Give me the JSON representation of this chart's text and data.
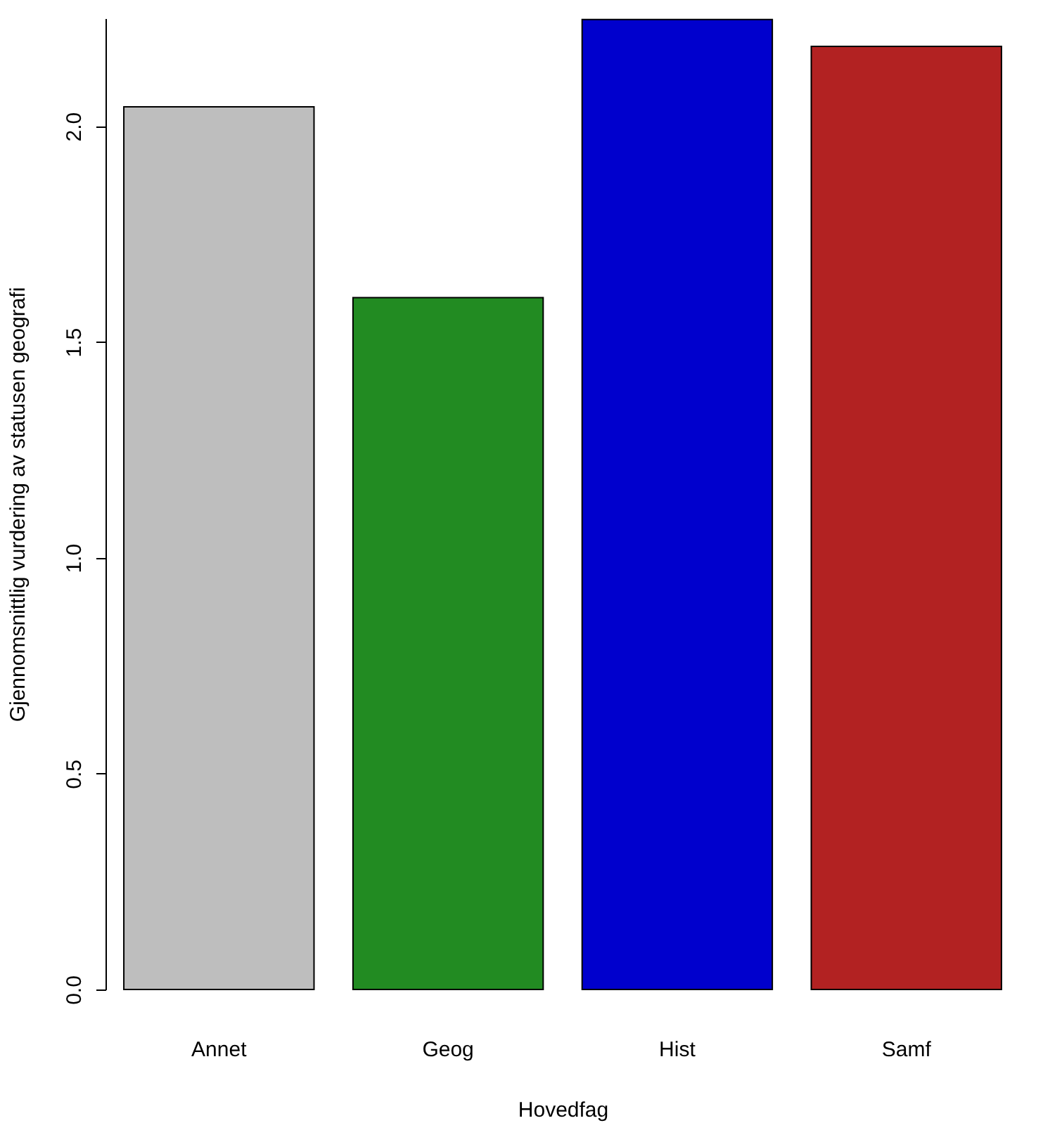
{
  "chart_data": {
    "type": "bar",
    "xlabel": "Hovedfag",
    "ylabel": "Gjennomsnittlig vurdering av statusen geografi",
    "categories": [
      "Annet",
      "Geog",
      "Hist",
      "Samf"
    ],
    "values": [
      2.045,
      1.603,
      2.247,
      2.185
    ],
    "colors": [
      "#bebebe",
      "#228b22",
      "#0000cd",
      "#b22222"
    ],
    "ylim": [
      0,
      2.25
    ],
    "yticks": [
      {
        "value": 0,
        "label": "0.0"
      },
      0.5,
      {
        "value": 1,
        "label": "1.0"
      },
      1.5,
      {
        "value": 2,
        "label": "2.0"
      }
    ],
    "grid": false
  }
}
